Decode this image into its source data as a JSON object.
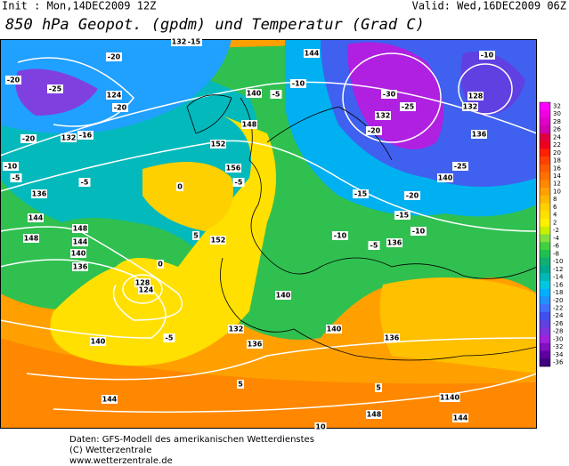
{
  "header": {
    "init": "Init : Mon,14DEC2009 12Z",
    "valid": "Valid: Wed,16DEC2009 06Z",
    "title": "850 hPa Geopot. (gpdm) und Temperatur (Grad C)"
  },
  "colorbar": {
    "labels": [
      32,
      30,
      28,
      26,
      24,
      22,
      20,
      18,
      16,
      14,
      12,
      10,
      8,
      6,
      4,
      2,
      -2,
      -4,
      -6,
      -8,
      -10,
      -12,
      -14,
      -16,
      -18,
      -20,
      -22,
      -24,
      -26,
      -28,
      -30,
      -32,
      -34,
      -36
    ],
    "colors": [
      "#ff00ff",
      "#f000e0",
      "#e000c8",
      "#d000b0",
      "#e00040",
      "#f00020",
      "#ff2000",
      "#ff4000",
      "#ff5a00",
      "#ff7000",
      "#ff8800",
      "#ffa000",
      "#ffb800",
      "#ffd000",
      "#ffe000",
      "#fff000",
      "#c8f000",
      "#80e040",
      "#40d040",
      "#20c050",
      "#10b070",
      "#00a890",
      "#00b8b8",
      "#00c8e0",
      "#00b0ff",
      "#2090ff",
      "#4070ff",
      "#4050f0",
      "#6040e0",
      "#8030e0",
      "#a020e0",
      "#8010c0",
      "#6000a0",
      "#400080"
    ]
  },
  "contour_labels": [
    "-25",
    "-20",
    "-20",
    "-15",
    "132",
    "144",
    "124",
    "-20",
    "-16",
    "132",
    "-20",
    "-10",
    "-5",
    "-5",
    "136",
    "144",
    "148",
    "148",
    "144",
    "140",
    "136",
    "128",
    "124",
    "140",
    "144",
    "0",
    "5",
    "152",
    "0",
    "-5",
    "156",
    "152",
    "140",
    "148",
    "-5",
    "-10",
    "-30",
    "-25",
    "132",
    "-20",
    "128",
    "-10",
    "132",
    "136",
    "-25",
    "140",
    "-20",
    "-15",
    "-15",
    "-10",
    "-5",
    "136",
    "-10",
    "140",
    "140",
    "136",
    "1140",
    "144",
    "148",
    "10",
    "5",
    "5",
    "-5",
    "132",
    "136"
  ],
  "footer": {
    "line1": "Daten: GFS-Modell des amerikanischen Wetterdienstes",
    "line2": "(C) Wetterzentrale",
    "line3": "www.wetterzentrale.de"
  }
}
